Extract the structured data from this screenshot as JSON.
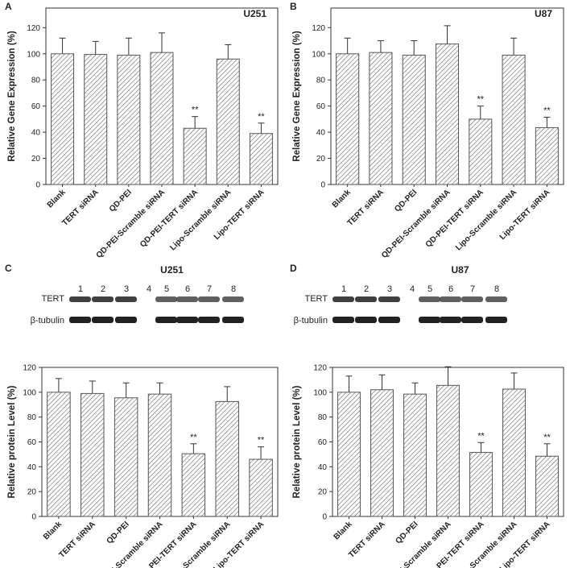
{
  "chart_data": [
    {
      "type": "bar",
      "panel": "A",
      "title": "U251",
      "ylabel": "Relative Gene Expression (%)",
      "categories": [
        "Blank",
        "TERT siRNA",
        "QD-PEI",
        "QD-PEI-Scramble siRNA",
        "QD-PEI-TERT siRNA",
        "Lipo-Scramble siRNA",
        "Lipo-TERT siRNA"
      ],
      "values": [
        100,
        99.5,
        99,
        101,
        43,
        96,
        39
      ],
      "errors": [
        12,
        10,
        13,
        15,
        9,
        11,
        8
      ],
      "value_annotations": [
        null,
        null,
        null,
        null,
        "**",
        null,
        "**"
      ],
      "ylim": [
        0,
        135
      ],
      "yticks": [
        0,
        20,
        40,
        60,
        80,
        100,
        120
      ],
      "color": "#555555"
    },
    {
      "type": "bar",
      "panel": "B",
      "title": "U87",
      "ylabel": "Relative Gene Expression (%)",
      "categories": [
        "Blank",
        "TERT siRNA",
        "QD-PEI",
        "QD-PEI-Scramble siRNA",
        "QD-PEI-TERT siRNA",
        "Lipo-Scramble siRNA",
        "Lipo-TERT siRNA"
      ],
      "values": [
        100,
        101,
        99,
        107.5,
        50,
        99,
        43.5
      ],
      "errors": [
        12,
        9,
        11,
        14,
        10,
        13,
        8
      ],
      "value_annotations": [
        null,
        null,
        null,
        null,
        "**",
        null,
        "**"
      ],
      "ylim": [
        0,
        135
      ],
      "yticks": [
        0,
        20,
        40,
        60,
        80,
        100,
        120
      ],
      "color": "#555555"
    },
    {
      "type": "bar",
      "panel": "C",
      "title": "U251",
      "ylabel": "Relative protein Level (%)",
      "blot": {
        "rows": [
          "TERT",
          "β-tubulin"
        ],
        "lanes": [
          "1",
          "2",
          "3",
          "4",
          "5",
          "6",
          "7",
          "8"
        ]
      },
      "categories": [
        "Blank",
        "TERT siRNA",
        "QD-PEI",
        "QD-PEI-Scramble siRNA",
        "QD-PEI-TERT siRNA",
        "Lipo-Scramble siRNA",
        "Lipo-TERT siRNA"
      ],
      "values": [
        100,
        99,
        95.5,
        98.5,
        50.5,
        92.5,
        46
      ],
      "errors": [
        11,
        10,
        12,
        9,
        8,
        12,
        10
      ],
      "value_annotations": [
        null,
        null,
        null,
        null,
        "**",
        null,
        "**"
      ],
      "ylim": [
        0,
        120
      ],
      "yticks": [
        0,
        20,
        40,
        60,
        80,
        100,
        120
      ],
      "color": "#555555"
    },
    {
      "type": "bar",
      "panel": "D",
      "title": "U87",
      "ylabel": "Relative protein Level (%)",
      "blot": {
        "rows": [
          "TERT",
          "β-tubulin"
        ],
        "lanes": [
          "1",
          "2",
          "3",
          "4",
          "5",
          "6",
          "7",
          "8"
        ]
      },
      "categories": [
        "Blank",
        "TERT siRNA",
        "QD-PEI",
        "QD-PEI-Scramble siRNA",
        "QD-PEI-TERT siRNA",
        "Lipo-Scramble siRNA",
        "Lipo-TERT siRNA"
      ],
      "values": [
        100,
        102,
        98.5,
        105.5,
        51.5,
        102.5,
        48.5
      ],
      "errors": [
        13,
        12,
        9,
        15,
        8,
        13,
        10
      ],
      "value_annotations": [
        null,
        null,
        null,
        null,
        "**",
        null,
        "**"
      ],
      "ylim": [
        0,
        120
      ],
      "yticks": [
        0,
        20,
        40,
        60,
        80,
        100,
        120
      ],
      "color": "#555555"
    }
  ]
}
